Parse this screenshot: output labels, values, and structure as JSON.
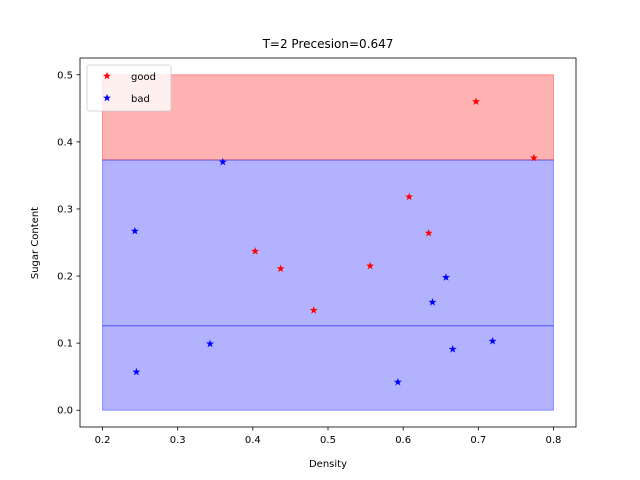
{
  "chart_data": {
    "type": "scatter",
    "title": "T=2   Precesion=0.647",
    "xlabel": "Density",
    "ylabel": "Sugar Content",
    "xlim": [
      0.17,
      0.83
    ],
    "ylim": [
      -0.025,
      0.525
    ],
    "xticks": [
      0.2,
      0.3,
      0.4,
      0.5,
      0.6,
      0.7,
      0.8
    ],
    "xtick_labels": [
      "0.2",
      "0.3",
      "0.4",
      "0.5",
      "0.6",
      "0.7",
      "0.8"
    ],
    "yticks": [
      0.0,
      0.1,
      0.2,
      0.3,
      0.4,
      0.5
    ],
    "ytick_labels": [
      "0.0",
      "0.1",
      "0.2",
      "0.3",
      "0.4",
      "0.5"
    ],
    "grid": false,
    "legend_position": "top-left",
    "regions": [
      {
        "class": "good",
        "x": [
          0.2,
          0.8
        ],
        "y": [
          0.373,
          0.5
        ],
        "color": "#ff0000",
        "opacity": 0.3
      },
      {
        "class": "bad",
        "x": [
          0.2,
          0.8
        ],
        "y": [
          0.0,
          0.373
        ],
        "color": "#0000ff",
        "opacity": 0.3
      }
    ],
    "split_line": {
      "y": 0.126,
      "x": [
        0.2,
        0.8
      ],
      "color": "#0000ff"
    },
    "series": [
      {
        "name": "good",
        "color": "#ff0000",
        "marker": "star",
        "points": [
          {
            "x": 0.697,
            "y": 0.46
          },
          {
            "x": 0.774,
            "y": 0.376
          },
          {
            "x": 0.608,
            "y": 0.318
          },
          {
            "x": 0.634,
            "y": 0.264
          },
          {
            "x": 0.403,
            "y": 0.237
          },
          {
            "x": 0.437,
            "y": 0.211
          },
          {
            "x": 0.556,
            "y": 0.215
          },
          {
            "x": 0.481,
            "y": 0.149
          }
        ]
      },
      {
        "name": "bad",
        "color": "#0000ff",
        "marker": "star",
        "points": [
          {
            "x": 0.36,
            "y": 0.37
          },
          {
            "x": 0.243,
            "y": 0.267
          },
          {
            "x": 0.657,
            "y": 0.198
          },
          {
            "x": 0.639,
            "y": 0.161
          },
          {
            "x": 0.343,
            "y": 0.099
          },
          {
            "x": 0.719,
            "y": 0.103
          },
          {
            "x": 0.666,
            "y": 0.091
          },
          {
            "x": 0.245,
            "y": 0.057
          },
          {
            "x": 0.593,
            "y": 0.042
          }
        ]
      }
    ]
  }
}
